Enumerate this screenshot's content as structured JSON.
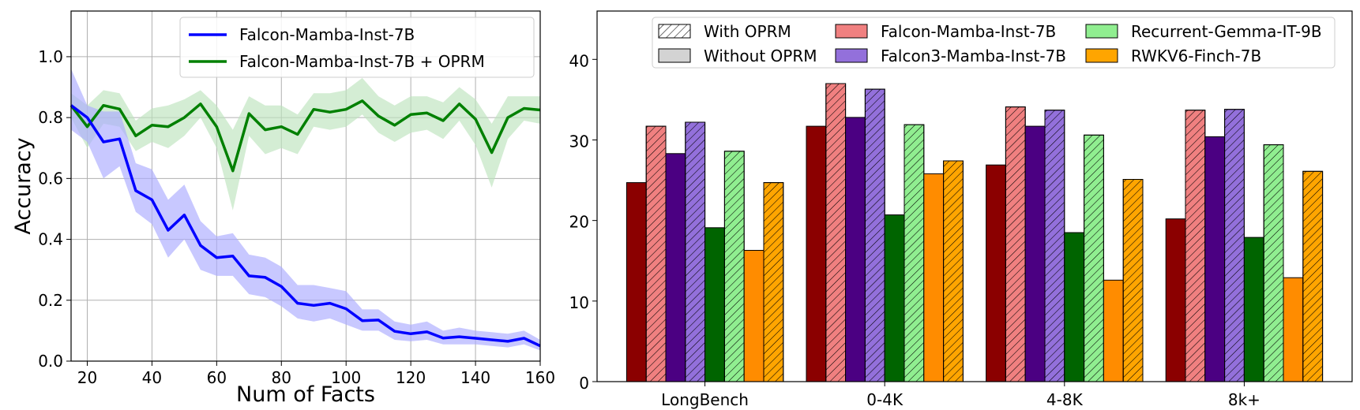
{
  "chart_data": [
    {
      "type": "line",
      "xlabel": "Num of Facts",
      "ylabel": "Accuracy",
      "xlim": [
        15,
        160
      ],
      "ylim": [
        0,
        1.15
      ],
      "xticks": [
        "20",
        "40",
        "60",
        "80",
        "100",
        "120",
        "140",
        "160"
      ],
      "yticks": [
        "0.0",
        "0.2",
        "0.4",
        "0.6",
        "0.8",
        "1.0"
      ],
      "grid": true,
      "legend_position": "top-right",
      "x": [
        15,
        20,
        25,
        30,
        35,
        40,
        45,
        50,
        55,
        60,
        65,
        70,
        75,
        80,
        85,
        90,
        95,
        100,
        105,
        110,
        115,
        120,
        125,
        130,
        135,
        140,
        145,
        150,
        155,
        160
      ],
      "series": [
        {
          "name": "Falcon-Mamba-Inst-7B",
          "color": "#0000ff",
          "band_color": "#aaaaff",
          "values": [
            0.84,
            0.8,
            0.72,
            0.73,
            0.56,
            0.53,
            0.43,
            0.48,
            0.38,
            0.34,
            0.345,
            0.28,
            0.275,
            0.245,
            0.19,
            0.183,
            0.19,
            0.172,
            0.133,
            0.135,
            0.098,
            0.09,
            0.096,
            0.076,
            0.08,
            0.075,
            0.07,
            0.065,
            0.075,
            0.05
          ],
          "lower": [
            0.76,
            0.72,
            0.6,
            0.64,
            0.49,
            0.45,
            0.34,
            0.4,
            0.3,
            0.28,
            0.28,
            0.22,
            0.21,
            0.18,
            0.14,
            0.13,
            0.14,
            0.12,
            0.1,
            0.1,
            0.07,
            0.065,
            0.07,
            0.055,
            0.055,
            0.055,
            0.05,
            0.045,
            0.055,
            0.035
          ],
          "upper": [
            0.96,
            0.84,
            0.82,
            0.82,
            0.65,
            0.63,
            0.53,
            0.58,
            0.46,
            0.41,
            0.42,
            0.35,
            0.34,
            0.31,
            0.25,
            0.25,
            0.24,
            0.23,
            0.17,
            0.17,
            0.13,
            0.12,
            0.13,
            0.1,
            0.11,
            0.1,
            0.095,
            0.09,
            0.1,
            0.07
          ]
        },
        {
          "name": "Falcon-Mamba-Inst-7B + OPRM",
          "color": "#008000",
          "band_color": "#bde3bd",
          "values": [
            0.84,
            0.77,
            0.84,
            0.828,
            0.74,
            0.775,
            0.77,
            0.8,
            0.845,
            0.77,
            0.625,
            0.813,
            0.76,
            0.77,
            0.745,
            0.827,
            0.818,
            0.827,
            0.855,
            0.805,
            0.775,
            0.81,
            0.815,
            0.79,
            0.845,
            0.795,
            0.685,
            0.8,
            0.83,
            0.825
          ],
          "lower": [
            0.8,
            0.7,
            0.78,
            0.77,
            0.69,
            0.72,
            0.7,
            0.74,
            0.8,
            0.7,
            0.495,
            0.74,
            0.68,
            0.7,
            0.68,
            0.77,
            0.76,
            0.77,
            0.81,
            0.75,
            0.72,
            0.75,
            0.76,
            0.73,
            0.79,
            0.71,
            0.57,
            0.73,
            0.79,
            0.78
          ],
          "upper": [
            0.88,
            0.84,
            0.89,
            0.88,
            0.79,
            0.83,
            0.84,
            0.86,
            0.89,
            0.84,
            0.76,
            0.87,
            0.84,
            0.84,
            0.81,
            0.88,
            0.88,
            0.89,
            0.93,
            0.87,
            0.84,
            0.87,
            0.87,
            0.85,
            0.9,
            0.86,
            0.78,
            0.87,
            0.87,
            0.87
          ]
        }
      ]
    },
    {
      "type": "bar",
      "categories": [
        "LongBench",
        "0-4K",
        "4-8K",
        "8k+"
      ],
      "ylim": [
        0,
        46
      ],
      "yticks": [
        "0",
        "10",
        "20",
        "30",
        "40"
      ],
      "grid": false,
      "legend_position": "top",
      "pattern_legend": [
        "With OPRM",
        "Without OPRM"
      ],
      "series": [
        {
          "name": "Falcon-Mamba-Inst-7B",
          "color": "#8b0000",
          "hatch_color": "#f08080",
          "without": [
            24.7,
            31.7,
            26.9,
            20.2
          ],
          "with": [
            31.7,
            37.0,
            34.1,
            33.7
          ]
        },
        {
          "name": "Falcon3-Mamba-Inst-7B",
          "color": "#4b0082",
          "hatch_color": "#9370db",
          "without": [
            28.3,
            32.8,
            31.7,
            30.4
          ],
          "with": [
            32.2,
            36.3,
            33.7,
            33.8
          ]
        },
        {
          "name": "Recurrent-Gemma-IT-9B",
          "color": "#006400",
          "hatch_color": "#90ee90",
          "without": [
            19.1,
            20.7,
            18.5,
            17.9
          ],
          "with": [
            28.6,
            31.9,
            30.6,
            29.4
          ]
        },
        {
          "name": "RWKV6-Finch-7B",
          "color": "#ff8c00",
          "hatch_color": "#ffa500",
          "without": [
            16.3,
            25.8,
            12.6,
            12.9
          ],
          "with": [
            24.7,
            27.4,
            25.1,
            26.1
          ]
        }
      ]
    }
  ]
}
